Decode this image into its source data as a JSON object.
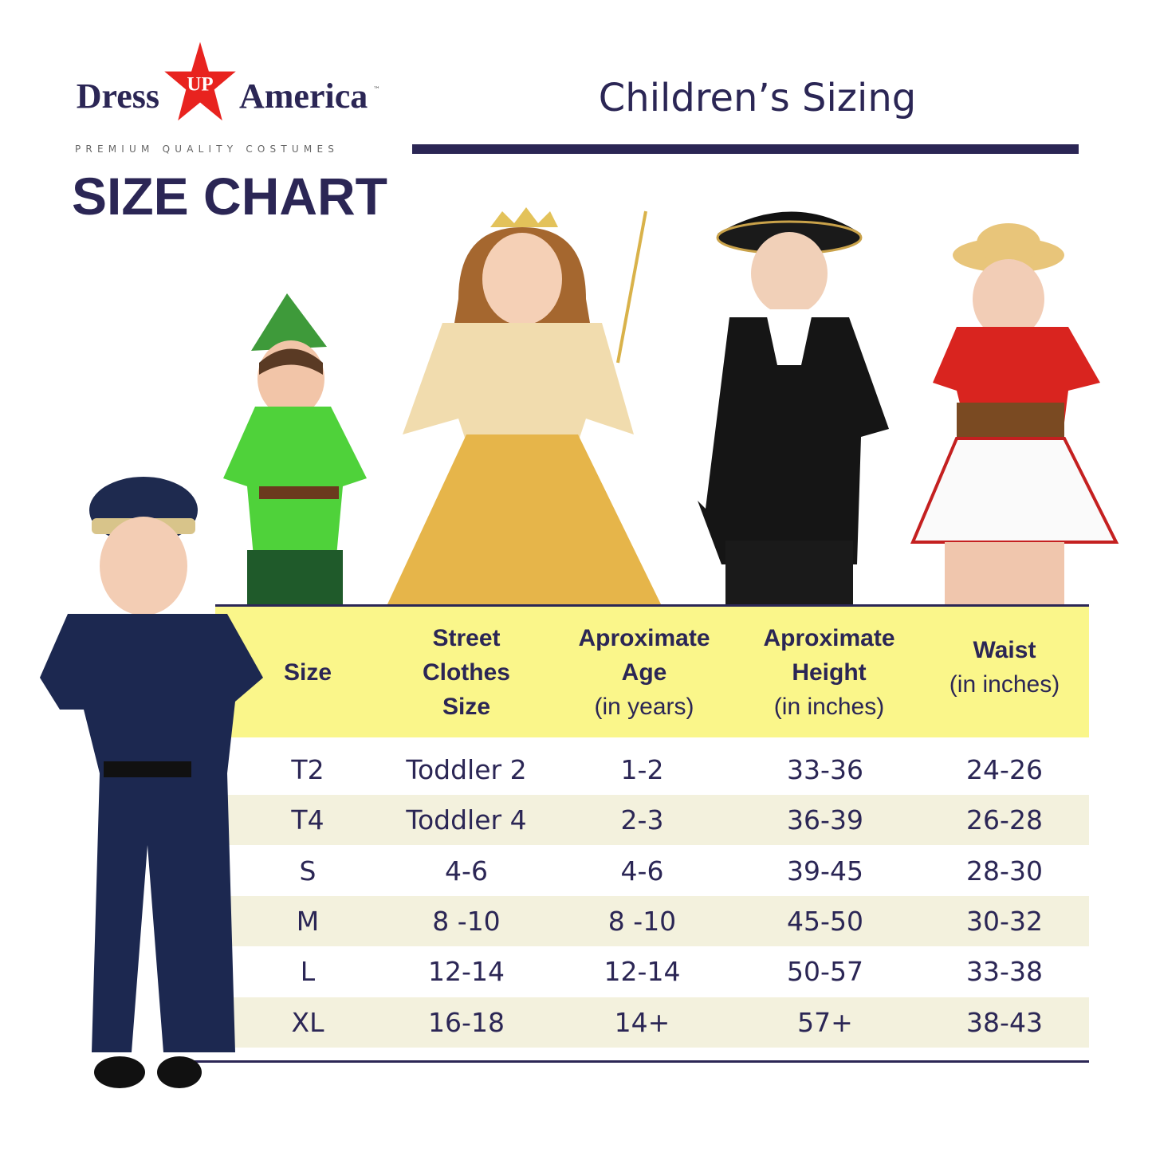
{
  "brand": {
    "logo_left": "Dress",
    "logo_star": "UP",
    "logo_right": "America",
    "trademark": "™",
    "tagline": "PREMIUM QUALITY COSTUMES",
    "star_color": "#e8231f"
  },
  "heading": "SIZE CHART",
  "title": "Children’s Sizing",
  "colors": {
    "navy": "#2b2655",
    "header_yellow": "#faf68a",
    "alt_row": "#f3f1dd"
  },
  "table": {
    "headers": [
      {
        "bold": "Size",
        "sub": ""
      },
      {
        "bold": "Street Clothes Size",
        "sub": ""
      },
      {
        "bold": "Aproximate Age",
        "sub": "(in years)"
      },
      {
        "bold": "Aproximate Height",
        "sub": "(in inches)"
      },
      {
        "bold": "Waist",
        "sub": "(in inches)"
      }
    ],
    "header_lines": [
      [
        "Size"
      ],
      [
        "Street",
        "Clothes",
        "Size"
      ],
      [
        "Aproximate",
        "Age"
      ],
      [
        "Aproximate",
        "Height"
      ],
      [
        "Waist"
      ]
    ],
    "rows": [
      [
        "T2",
        "Toddler 2",
        "1-2",
        "33-36",
        "24-26"
      ],
      [
        "T4",
        "Toddler 4",
        "2-3",
        "36-39",
        "26-28"
      ],
      [
        "S",
        "4-6",
        "4-6",
        "39-45",
        "28-30"
      ],
      [
        "M",
        "8 -10",
        "8 -10",
        "45-50",
        "30-32"
      ],
      [
        "L",
        "12-14",
        "12-14",
        "50-57",
        "33-38"
      ],
      [
        "XL",
        "16-18",
        "14+",
        "57+",
        "38-43"
      ]
    ]
  },
  "photos": [
    "police-officer-costume",
    "peter-pan-costume",
    "princess-costume",
    "colonial-costume",
    "cowgirl-costume"
  ]
}
